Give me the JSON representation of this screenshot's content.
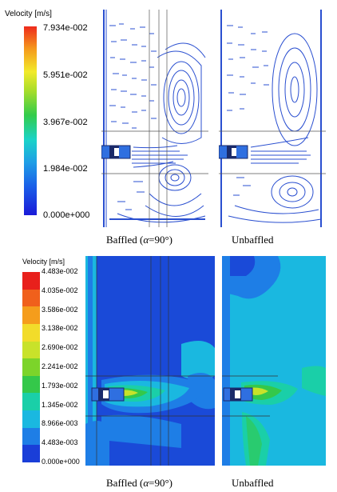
{
  "top_legend": {
    "title": "Velocity [m/s]",
    "ticks": [
      "7.934e-002",
      "5.951e-002",
      "3.967e-002",
      "1.984e-002",
      "0.000e+000"
    ]
  },
  "bottom_legend": {
    "title": "Velocity [m/s]",
    "ticks": [
      "4.483e-002",
      "4.035e-002",
      "3.586e-002",
      "3.138e-002",
      "2.690e-002",
      "2.241e-002",
      "1.793e-002",
      "1.345e-002",
      "8.966e-003",
      "4.483e-003",
      "0.000e+000"
    ],
    "colors": [
      "#e8201c",
      "#f0601c",
      "#f59d1c",
      "#f2dc2a",
      "#c8e22a",
      "#7cd42a",
      "#34c84a",
      "#1acfa8",
      "#1ab8e0",
      "#1e7ee6",
      "#1a3ed8"
    ]
  },
  "captions": {
    "top_left_pre": "Baffled (",
    "alpha": "α",
    "top_left_post": "=90°)",
    "top_right": "Unbaffled",
    "bottom_left_pre": "Baffled (",
    "bottom_left_post": "=90°)",
    "bottom_right": "Unbaffled"
  },
  "colors": {
    "stream": "#2a4fd0",
    "impeller": "#1a2a6a",
    "contour_base": "#1a4ad8"
  }
}
